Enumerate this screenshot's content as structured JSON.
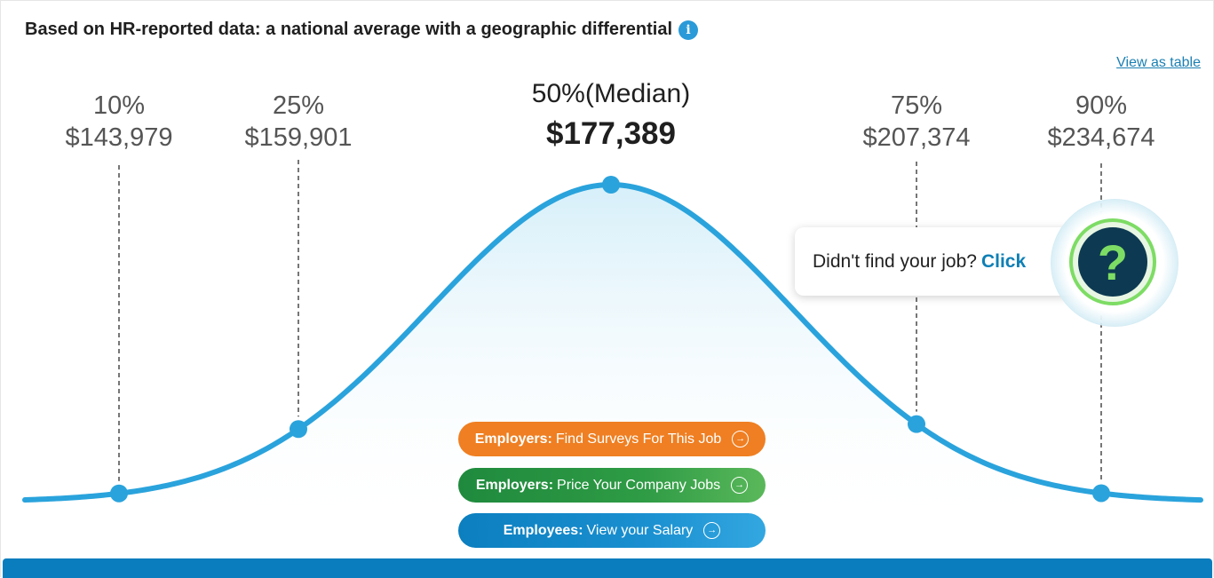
{
  "heading": {
    "title": "Based on HR-reported data: a national average with a geographic differential",
    "info_icon": "i"
  },
  "view_table_link": "View as table",
  "chart_data": {
    "type": "line",
    "subtype": "bell-curve-percentiles",
    "points": [
      {
        "percentile": "10%",
        "value": "$143,979"
      },
      {
        "percentile": "25%",
        "value": "$159,901"
      },
      {
        "percentile": "50%(Median)",
        "value": "$177,389"
      },
      {
        "percentile": "75%",
        "value": "$207,374"
      },
      {
        "percentile": "90%",
        "value": "$234,674"
      }
    ],
    "values": [
      143979,
      159901,
      177389,
      207374,
      234674
    ],
    "highlight_index": 2,
    "colors": {
      "curve": "#2aa3dc",
      "fill_top": "#d6eff9",
      "guide": "#555555",
      "label": "#555555",
      "median_label": "#1f1f1f"
    }
  },
  "ctas": [
    {
      "bold": "Employers:",
      "text": "Find Surveys For This Job",
      "arrow": "→",
      "color": "#ef7f22"
    },
    {
      "bold": "Employers:",
      "text": "Price Your Company Jobs",
      "arrow": "→",
      "color": "#1f8a3d"
    },
    {
      "bold": "Employees:",
      "text": "View your Salary",
      "arrow": "→",
      "color": "#0b7fbf"
    }
  ],
  "popup": {
    "text": "Didn't find your job?",
    "link": "Click",
    "help_icon": "?"
  },
  "colors": {
    "accent": "#0a7dbe",
    "link": "#1a7fb3",
    "help_green": "#7ddc64",
    "help_dark": "#0d3a52"
  }
}
